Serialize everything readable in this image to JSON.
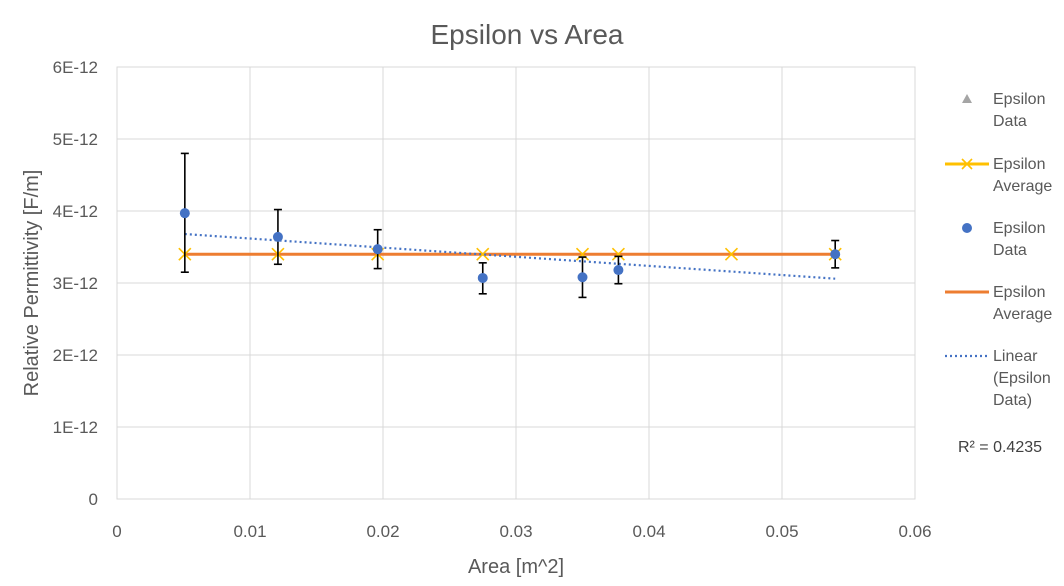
{
  "chart_data": {
    "type": "scatter",
    "title": "Epsilon vs Area",
    "xlabel": "Area [m^2]",
    "ylabel": "Relative Permittivity [F/m]",
    "xlim": [
      0,
      0.06
    ],
    "ylim": [
      0,
      6e-12
    ],
    "x_ticks": [
      0,
      0.01,
      0.02,
      0.03,
      0.04,
      0.05,
      0.06
    ],
    "x_tick_labels": [
      "0",
      "0.01",
      "0.02",
      "0.03",
      "0.04",
      "0.05",
      "0.06"
    ],
    "y_ticks": [
      0,
      1e-12,
      2e-12,
      3e-12,
      4e-12,
      5e-12,
      6e-12
    ],
    "y_tick_labels": [
      "0",
      "1E-12",
      "2E-12",
      "3E-12",
      "4E-12",
      "5E-12",
      "6E-12"
    ],
    "grid": true,
    "legend_position": "right",
    "series": [
      {
        "name": "Epsilon Data",
        "kind": "marker-triangle",
        "color": "#a5a5a5",
        "points": []
      },
      {
        "name": "Epsilon Average",
        "kind": "line-x-markers",
        "color": "#ffc000",
        "points": [
          {
            "x": 0.0051,
            "y": 3.4e-12
          },
          {
            "x": 0.0121,
            "y": 3.4e-12
          },
          {
            "x": 0.0196,
            "y": 3.4e-12
          },
          {
            "x": 0.0275,
            "y": 3.4e-12
          },
          {
            "x": 0.035,
            "y": 3.4e-12
          },
          {
            "x": 0.0377,
            "y": 3.4e-12
          },
          {
            "x": 0.0462,
            "y": 3.4e-12
          },
          {
            "x": 0.054,
            "y": 3.4e-12
          }
        ]
      },
      {
        "name": "Epsilon Data",
        "kind": "marker-circle-errorbars",
        "color": "#4472c4",
        "points": [
          {
            "x": 0.0051,
            "y": 3.97e-12,
            "err_low": 3.15e-12,
            "err_high": 4.8e-12
          },
          {
            "x": 0.0121,
            "y": 3.64e-12,
            "err_low": 3.26e-12,
            "err_high": 4.02e-12
          },
          {
            "x": 0.0196,
            "y": 3.47e-12,
            "err_low": 3.2e-12,
            "err_high": 3.74e-12
          },
          {
            "x": 0.0275,
            "y": 3.07e-12,
            "err_low": 2.85e-12,
            "err_high": 3.28e-12
          },
          {
            "x": 0.035,
            "y": 3.08e-12,
            "err_low": 2.8e-12,
            "err_high": 3.36e-12
          },
          {
            "x": 0.0377,
            "y": 3.18e-12,
            "err_low": 2.99e-12,
            "err_high": 3.37e-12
          },
          {
            "x": 0.054,
            "y": 3.4e-12,
            "err_low": 3.21e-12,
            "err_high": 3.59e-12
          }
        ]
      },
      {
        "name": "Epsilon Average",
        "kind": "line",
        "color": "#ed7d31",
        "points": [
          {
            "x": 0.0051,
            "y": 3.4e-12
          },
          {
            "x": 0.054,
            "y": 3.4e-12
          }
        ]
      },
      {
        "name": "Linear (Epsilon Data)",
        "kind": "trendline-dotted",
        "color": "#4472c4",
        "points": [
          {
            "x": 0.0051,
            "y": 3.68e-12
          },
          {
            "x": 0.054,
            "y": 3.06e-12
          }
        ]
      }
    ],
    "annotations": [
      {
        "text": "R² = 0.4235"
      }
    ],
    "legend": {
      "entries": [
        {
          "lines": [
            "Epsilon",
            "Data"
          ],
          "icon": "triangle-icon",
          "color": "#a5a5a5"
        },
        {
          "lines": [
            "Epsilon",
            "Average"
          ],
          "icon": "line-x-icon",
          "color": "#ffc000"
        },
        {
          "lines": [
            "Epsilon",
            "Data"
          ],
          "icon": "circle-icon",
          "color": "#4472c4"
        },
        {
          "lines": [
            "Epsilon",
            "Average"
          ],
          "icon": "line-icon",
          "color": "#ed7d31"
        },
        {
          "lines": [
            "Linear",
            "(Epsilon",
            "Data)"
          ],
          "icon": "dotted-line-icon",
          "color": "#4472c4"
        }
      ]
    }
  }
}
